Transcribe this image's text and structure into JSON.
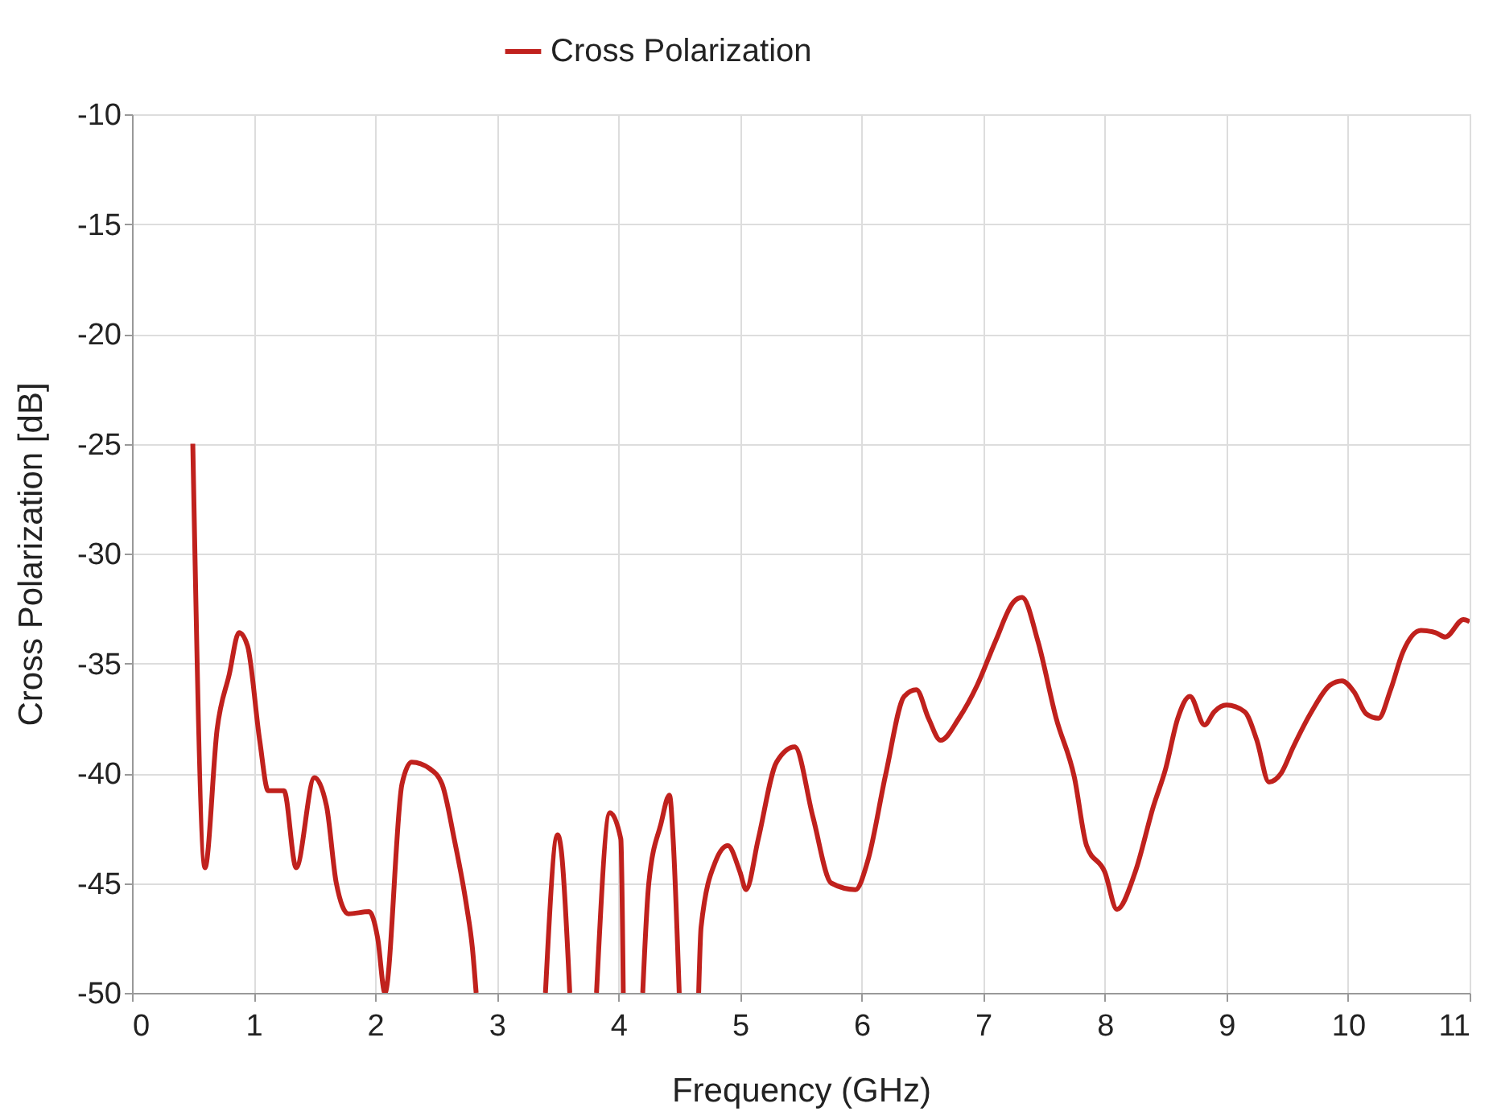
{
  "chart_data": {
    "type": "line",
    "xlabel": "Frequency (GHz)",
    "ylabel": "Cross Polarization [dB]",
    "x": [
      0.5,
      0.6,
      0.7,
      0.8,
      0.88,
      0.95,
      1.05,
      1.12,
      1.25,
      1.35,
      1.5,
      1.6,
      1.68,
      1.78,
      1.95,
      2.02,
      2.08,
      2.22,
      2.3,
      2.45,
      2.55,
      2.65,
      2.75,
      2.8,
      2.83,
      3.0,
      3.4,
      3.5,
      3.53,
      3.6,
      3.7,
      3.82,
      3.93,
      4.02,
      4.04,
      4.1,
      4.2,
      4.25,
      4.35,
      4.42,
      4.45,
      4.5,
      4.6,
      4.66,
      4.68,
      4.8,
      4.9,
      5.0,
      5.05,
      5.15,
      5.3,
      5.45,
      5.6,
      5.75,
      5.95,
      6.05,
      6.2,
      6.35,
      6.45,
      6.55,
      6.65,
      6.8,
      6.95,
      7.1,
      7.25,
      7.32,
      7.45,
      7.6,
      7.75,
      7.85,
      8.0,
      8.1,
      8.25,
      8.4,
      8.5,
      8.6,
      8.7,
      8.82,
      8.9,
      9.0,
      9.15,
      9.25,
      9.35,
      9.45,
      9.55,
      9.7,
      9.85,
      9.95,
      10.05,
      10.15,
      10.25,
      10.35,
      10.45,
      10.6,
      10.72,
      10.8,
      10.95,
      11.0
    ],
    "series": [
      {
        "name": "Cross Polarization",
        "color": "#c0211d",
        "values": [
          -25,
          -44.3,
          -38,
          -35.5,
          -33.6,
          -34.2,
          -38.5,
          -40.8,
          -40.8,
          -44.3,
          -40.2,
          -41.5,
          -45,
          -46.4,
          -46.3,
          -47.5,
          -50,
          -40.5,
          -39.5,
          -39.8,
          -40.5,
          -43,
          -46,
          -48,
          -50,
          null,
          -50,
          -42.8,
          -43.5,
          -50,
          null,
          -50,
          -41.8,
          -43,
          -50,
          null,
          -50,
          -45,
          -42.3,
          -41,
          -43,
          -50,
          null,
          -50,
          -47,
          -44,
          -43.3,
          -44.5,
          -45.3,
          -43,
          -39.5,
          -38.8,
          -42,
          -45,
          -45.3,
          -44,
          -40,
          -36.5,
          -36.2,
          -37.5,
          -38.5,
          -37.5,
          -36,
          -34,
          -32.2,
          -32,
          -34,
          -37.5,
          -40.2,
          -43.3,
          -44.5,
          -46.2,
          -44.5,
          -41.5,
          -39.8,
          -37.5,
          -36.5,
          -37.8,
          -37.2,
          -36.9,
          -37.2,
          -38.5,
          -40.4,
          -40,
          -38.8,
          -37.2,
          -36,
          -35.8,
          -36.3,
          -37.3,
          -37.5,
          -36.2,
          -34.5,
          -33.5,
          -33.6,
          -33.8,
          -33.0,
          -33.1
        ]
      }
    ],
    "xlim": [
      0,
      11
    ],
    "xticks": [
      0,
      1,
      2,
      3,
      4,
      5,
      6,
      7,
      8,
      9,
      10,
      11
    ],
    "ylim": [
      -50,
      -10
    ],
    "yticks": [
      -50,
      -45,
      -40,
      -35,
      -30,
      -25,
      -20,
      -15,
      -10
    ],
    "grid": true,
    "legend": "top",
    "marker": "none",
    "line_style": "solid"
  }
}
